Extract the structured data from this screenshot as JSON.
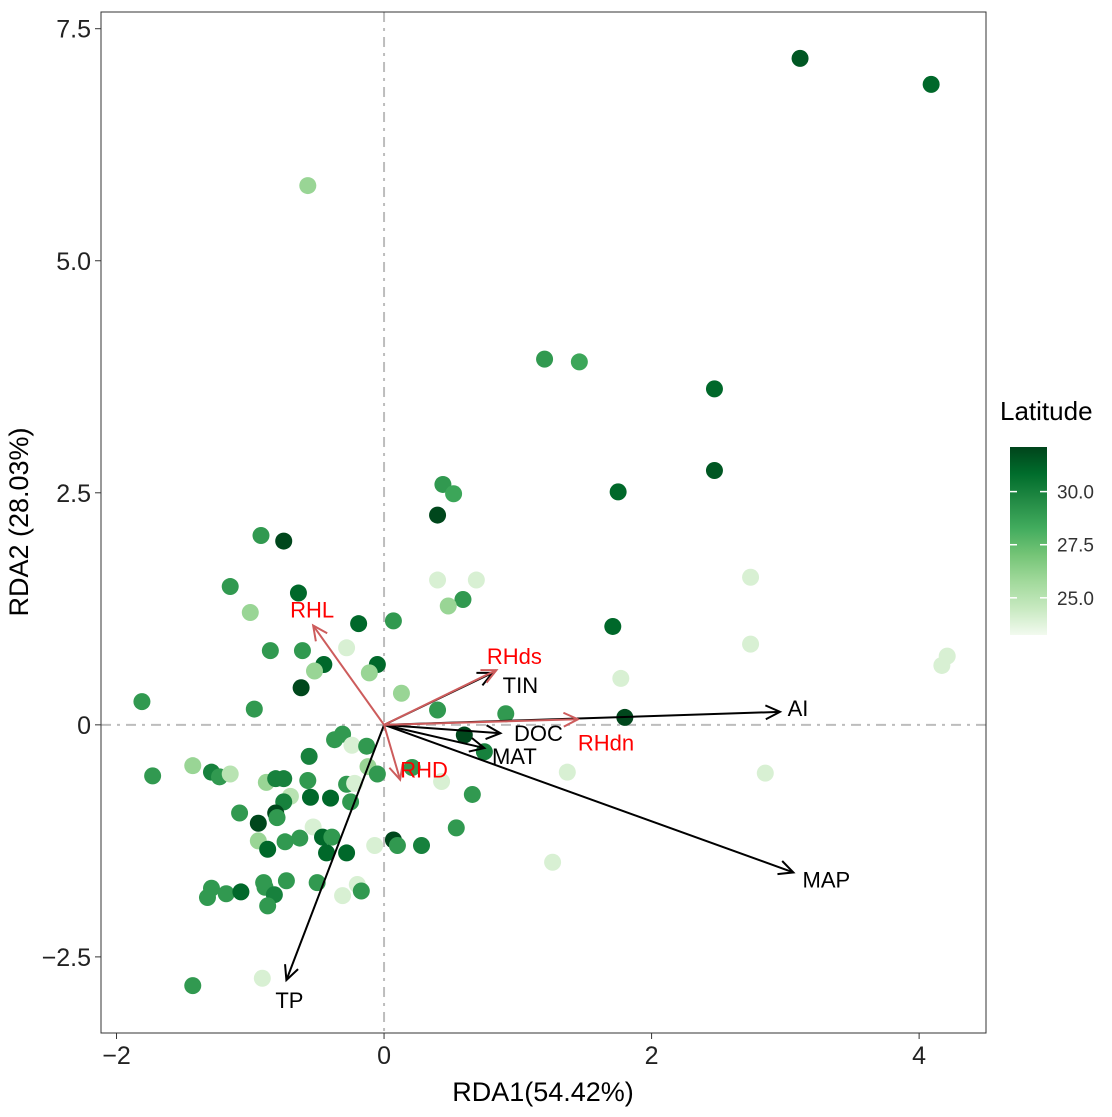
{
  "chart_data": {
    "type": "scatter",
    "title": "",
    "xlabel": "RDA1(54.42%)",
    "ylabel": "RDA2 (28.03%)",
    "xlim": [
      -2.116,
      4.5
    ],
    "ylim": [
      -3.32,
      7.68
    ],
    "xticks": [
      {
        "v": -2,
        "label": "−2"
      },
      {
        "v": 0,
        "label": "0"
      },
      {
        "v": 2,
        "label": "2"
      },
      {
        "v": 4,
        "label": "4"
      }
    ],
    "yticks": [
      {
        "v": -2.5,
        "label": "−2.5"
      },
      {
        "v": 0,
        "label": "0"
      },
      {
        "v": 2.5,
        "label": "2.5"
      },
      {
        "v": 5,
        "label": "5.0"
      },
      {
        "v": 7.5,
        "label": "7.5"
      }
    ],
    "grid": false,
    "reference_lines": {
      "x": 0,
      "y": 0,
      "style": "dash-dot",
      "color": "#bdbdbd"
    },
    "legend": {
      "title": "Latitude",
      "placement": "right",
      "type": "colorbar",
      "range": [
        23.25,
        32.1
      ],
      "ticks": [
        {
          "v": 25.0,
          "label": "25.0"
        },
        {
          "v": 27.5,
          "label": "27.5"
        },
        {
          "v": 30.0,
          "label": "30.0"
        }
      ],
      "colors": [
        "#f2faef",
        "#c7e9c0",
        "#a1d99b",
        "#74c476",
        "#41ab5d",
        "#238b45",
        "#006d2c",
        "#00441b"
      ]
    },
    "points_fields": [
      "RDA1",
      "RDA2",
      "Latitude"
    ],
    "points": [
      [
        3.11,
        7.18,
        31.5
      ],
      [
        4.09,
        6.9,
        31
      ],
      [
        -0.57,
        5.81,
        26
      ],
      [
        1.2,
        3.94,
        29
      ],
      [
        1.46,
        3.91,
        28.5
      ],
      [
        2.47,
        3.62,
        31
      ],
      [
        2.47,
        2.74,
        31.5
      ],
      [
        1.75,
        2.51,
        31
      ],
      [
        0.44,
        2.59,
        29
      ],
      [
        0.52,
        2.49,
        28.5
      ],
      [
        0.4,
        2.26,
        32
      ],
      [
        -0.92,
        2.04,
        29
      ],
      [
        -0.75,
        1.98,
        32
      ],
      [
        -1.15,
        1.49,
        29
      ],
      [
        -0.64,
        1.42,
        31
      ],
      [
        -1.0,
        1.21,
        26
      ],
      [
        0.4,
        1.56,
        24
      ],
      [
        0.69,
        1.56,
        24
      ],
      [
        0.59,
        1.35,
        29
      ],
      [
        0.48,
        1.28,
        26
      ],
      [
        -0.19,
        1.09,
        31
      ],
      [
        0.07,
        1.12,
        29
      ],
      [
        -0.28,
        0.83,
        24
      ],
      [
        -0.61,
        0.8,
        29
      ],
      [
        -0.45,
        0.65,
        31
      ],
      [
        -0.52,
        0.58,
        26
      ],
      [
        -0.05,
        0.65,
        31
      ],
      [
        -0.11,
        0.56,
        26
      ],
      [
        -0.62,
        0.4,
        32
      ],
      [
        -0.85,
        0.8,
        29
      ],
      [
        -0.97,
        0.17,
        29
      ],
      [
        -1.81,
        0.25,
        29
      ],
      [
        0.13,
        0.34,
        26
      ],
      [
        1.71,
        1.06,
        31
      ],
      [
        1.77,
        0.5,
        24
      ],
      [
        2.74,
        1.59,
        24
      ],
      [
        2.74,
        0.87,
        24
      ],
      [
        4.21,
        0.74,
        24
      ],
      [
        4.17,
        0.64,
        24
      ],
      [
        1.8,
        0.08,
        32
      ],
      [
        0.91,
        0.12,
        29
      ],
      [
        0.4,
        0.16,
        29
      ],
      [
        0.6,
        -0.11,
        32
      ],
      [
        0.75,
        -0.29,
        30
      ],
      [
        1.37,
        -0.51,
        24
      ],
      [
        2.85,
        -0.52,
        24
      ],
      [
        0.66,
        -0.75,
        29
      ],
      [
        0.54,
        -1.11,
        29
      ],
      [
        1.26,
        -1.48,
        24
      ],
      [
        0.07,
        -1.24,
        32
      ],
      [
        0.1,
        -1.3,
        29
      ],
      [
        0.28,
        -1.3,
        30
      ],
      [
        -0.07,
        -1.3,
        24
      ],
      [
        0.43,
        -0.61,
        24
      ],
      [
        0.21,
        -0.46,
        29
      ],
      [
        -1.73,
        -0.55,
        29
      ],
      [
        -1.43,
        -0.44,
        26
      ],
      [
        -1.29,
        -0.51,
        30
      ],
      [
        -1.23,
        -0.56,
        29
      ],
      [
        -1.15,
        -0.53,
        25
      ],
      [
        -0.88,
        -0.62,
        26
      ],
      [
        -0.81,
        -0.58,
        30
      ],
      [
        -0.75,
        -0.58,
        30
      ],
      [
        -0.56,
        -0.34,
        30
      ],
      [
        -0.57,
        -0.6,
        29
      ],
      [
        -0.37,
        -0.16,
        29
      ],
      [
        -0.31,
        -0.1,
        29
      ],
      [
        -0.24,
        -0.22,
        24
      ],
      [
        -0.13,
        -0.23,
        29
      ],
      [
        -0.12,
        -0.45,
        26
      ],
      [
        -0.05,
        -0.53,
        29
      ],
      [
        -0.28,
        -0.64,
        29
      ],
      [
        -0.22,
        -0.63,
        24
      ],
      [
        -0.7,
        -0.77,
        25
      ],
      [
        -0.55,
        -0.78,
        31
      ],
      [
        -0.4,
        -0.79,
        31
      ],
      [
        -0.25,
        -0.83,
        29
      ],
      [
        -1.08,
        -0.95,
        29
      ],
      [
        -0.75,
        -0.83,
        30
      ],
      [
        -0.94,
        -1.06,
        32
      ],
      [
        -0.81,
        -0.95,
        32
      ],
      [
        -0.8,
        -1.0,
        29
      ],
      [
        -0.53,
        -1.1,
        24
      ],
      [
        -0.46,
        -1.21,
        31
      ],
      [
        -0.39,
        -1.21,
        29
      ],
      [
        -0.94,
        -1.25,
        26
      ],
      [
        -0.87,
        -1.34,
        31
      ],
      [
        -0.74,
        -1.26,
        29
      ],
      [
        -0.63,
        -1.22,
        29
      ],
      [
        -0.43,
        -1.38,
        31
      ],
      [
        -0.28,
        -1.38,
        31
      ],
      [
        -1.29,
        -1.76,
        29
      ],
      [
        -1.32,
        -1.86,
        29
      ],
      [
        -1.18,
        -1.82,
        29
      ],
      [
        -1.07,
        -1.8,
        31
      ],
      [
        -0.9,
        -1.7,
        29
      ],
      [
        -0.89,
        -1.75,
        29
      ],
      [
        -0.82,
        -1.83,
        30
      ],
      [
        -0.87,
        -1.95,
        29
      ],
      [
        -0.73,
        -1.68,
        29
      ],
      [
        -0.5,
        -1.7,
        29
      ],
      [
        -0.31,
        -1.84,
        24
      ],
      [
        -0.2,
        -1.72,
        24
      ],
      [
        -0.17,
        -1.79,
        29
      ],
      [
        -1.43,
        -2.81,
        29
      ],
      [
        -0.91,
        -2.73,
        24
      ]
    ],
    "arrows": [
      {
        "name": "TIN",
        "x": 0.81,
        "y": 0.56,
        "color": "#000000",
        "label_color": "#000000"
      },
      {
        "name": "DOC",
        "x": 0.87,
        "y": -0.09,
        "color": "#000000",
        "label_color": "#000000"
      },
      {
        "name": "MAT",
        "x": 0.75,
        "y": -0.25,
        "color": "#000000",
        "label_color": "#000000"
      },
      {
        "name": "AI",
        "x": 2.96,
        "y": 0.14,
        "color": "#000000",
        "label_color": "#000000"
      },
      {
        "name": "MAP",
        "x": 3.06,
        "y": -1.59,
        "color": "#000000",
        "label_color": "#000000"
      },
      {
        "name": "TP",
        "x": -0.73,
        "y": -2.75,
        "color": "#000000",
        "label_color": "#000000"
      },
      {
        "name": "RHL",
        "x": -0.53,
        "y": 1.07,
        "color": "#cd5c5c",
        "label_color": "#ff0000"
      },
      {
        "name": "RHds",
        "x": 0.84,
        "y": 0.59,
        "color": "#cd5c5c",
        "label_color": "#ff0000"
      },
      {
        "name": "RHdn",
        "x": 1.45,
        "y": 0.06,
        "color": "#cd5c5c",
        "label_color": "#ff0000"
      },
      {
        "name": "RHD",
        "x": 0.12,
        "y": -0.59,
        "color": "#cd5c5c",
        "label_color": "#ff0000"
      }
    ]
  }
}
